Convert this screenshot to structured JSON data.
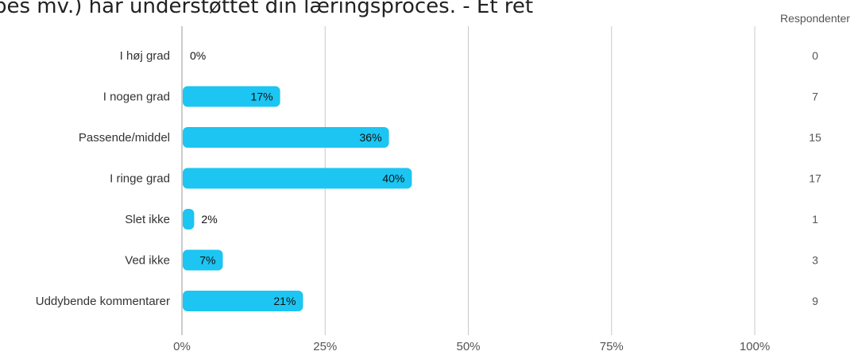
{
  "question_fragment": "pes mv.) har understøttet din læringsproces. - Ét ret",
  "respondents_header": "Respondenter",
  "colors": {
    "bar": "#1cc5f2",
    "grid": "#c8c8c8",
    "text": "#333333",
    "muted": "#555555"
  },
  "chart_data": {
    "type": "bar",
    "orientation": "horizontal",
    "categories": [
      "I høj grad",
      "I nogen grad",
      "Passende/middel",
      "I ringe grad",
      "Slet ikke",
      "Ved ikke",
      "Uddybende kommentarer"
    ],
    "values": [
      0,
      17,
      36,
      40,
      2,
      7,
      21
    ],
    "value_labels": [
      "0%",
      "17%",
      "36%",
      "40%",
      "2%",
      "7%",
      "21%"
    ],
    "respondents": [
      0,
      7,
      15,
      17,
      1,
      3,
      9
    ],
    "xticks": [
      "0%",
      "25%",
      "50%",
      "75%",
      "100%"
    ],
    "xlim": [
      0,
      100
    ],
    "grid": true
  }
}
